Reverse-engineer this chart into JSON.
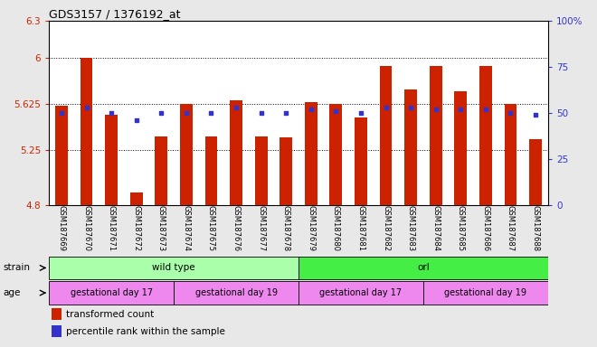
{
  "title": "GDS3157 / 1376192_at",
  "samples": [
    "GSM187669",
    "GSM187670",
    "GSM187671",
    "GSM187672",
    "GSM187673",
    "GSM187674",
    "GSM187675",
    "GSM187676",
    "GSM187677",
    "GSM187678",
    "GSM187679",
    "GSM187680",
    "GSM187681",
    "GSM187682",
    "GSM187683",
    "GSM187684",
    "GSM187685",
    "GSM187686",
    "GSM187687",
    "GSM187688"
  ],
  "bar_values": [
    5.61,
    6.0,
    5.535,
    4.9,
    5.36,
    5.62,
    5.355,
    5.655,
    5.355,
    5.35,
    5.635,
    5.625,
    5.51,
    5.93,
    5.74,
    5.93,
    5.73,
    5.93,
    5.625,
    5.34
  ],
  "percentile_values": [
    50,
    53,
    50,
    46,
    50,
    50,
    50,
    53,
    50,
    50,
    52,
    51,
    50,
    53,
    53,
    52,
    52,
    52,
    50,
    49
  ],
  "ymin": 4.8,
  "ymax": 6.3,
  "yticks_left": [
    4.8,
    5.25,
    5.625,
    6.0,
    6.3
  ],
  "yticks_right": [
    0,
    25,
    50,
    75,
    100
  ],
  "bar_color": "#cc2200",
  "dot_color": "#3333cc",
  "background_color": "#e8e8e8",
  "plot_bg_color": "#ffffff",
  "strain_labels": [
    "wild type",
    "orl"
  ],
  "strain_ranges": [
    [
      0,
      9
    ],
    [
      10,
      19
    ]
  ],
  "strain_color_light": "#aaffaa",
  "strain_color_dark": "#44ee44",
  "age_labels": [
    "gestational day 17",
    "gestational day 19",
    "gestational day 17",
    "gestational day 19"
  ],
  "age_ranges": [
    [
      0,
      4
    ],
    [
      5,
      9
    ],
    [
      10,
      14
    ],
    [
      15,
      19
    ]
  ],
  "age_color": "#ee88ee",
  "legend_bar_label": "transformed count",
  "legend_dot_label": "percentile rank within the sample",
  "hgrid_dotted_values": [
    5.25,
    5.625,
    6.0
  ]
}
